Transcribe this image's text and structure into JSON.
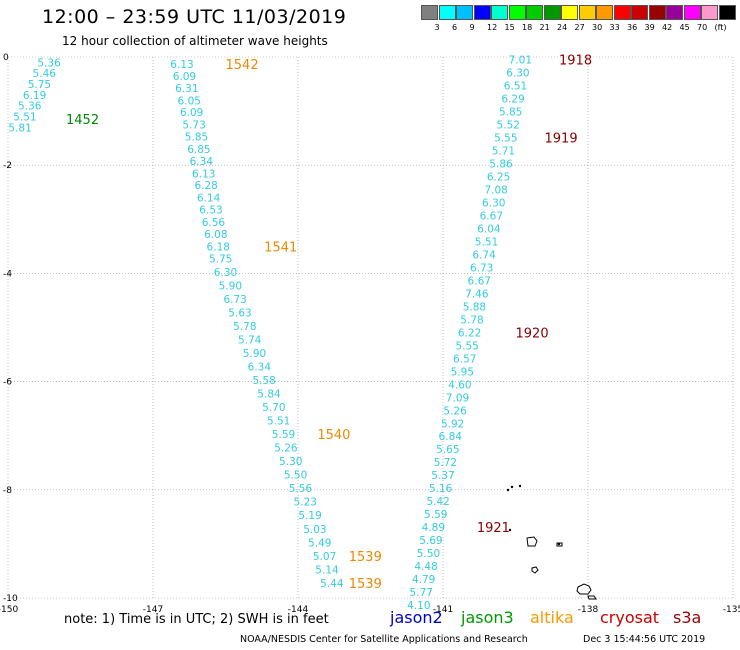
{
  "header": {
    "title": "12:00 – 23:59 UTC 11/03/2019",
    "subtitle": "12 hour collection of altimeter wave heights"
  },
  "colorbar": {
    "colors": [
      "#808080",
      "#00ffff",
      "#00bfff",
      "#0000ff",
      "#00ffcc",
      "#00ff00",
      "#00cc00",
      "#009900",
      "#ffff00",
      "#ffcc00",
      "#ff9900",
      "#ff0000",
      "#cc0000",
      "#990000",
      "#990099",
      "#ff00ff",
      "#ff99cc",
      "#000000"
    ],
    "labels": [
      "3",
      "6",
      "9",
      "12",
      "15",
      "18",
      "21",
      "24",
      "27",
      "30",
      "33",
      "36",
      "39",
      "42",
      "45",
      "70",
      "(ft)"
    ]
  },
  "footer": {
    "note": "note: 1) Time is in UTC; 2) SWH is in feet",
    "satellites": [
      {
        "name": "jason2",
        "color": "#0000cc"
      },
      {
        "name": "jason3",
        "color": "#009900"
      },
      {
        "name": "altika",
        "color": "#ff9900"
      },
      {
        "name": "cryosat",
        "color": "#cc0000"
      },
      {
        "name": "s3a",
        "color": "#990000"
      }
    ],
    "credit": "NOAA/NESDIS Center for Satellite Applications and Research",
    "timestamp": "Dec  3 15:44:56 UTC 2019"
  },
  "chart_data": {
    "type": "scatter",
    "title": "12:00 – 23:59 UTC 11/03/2019",
    "subtitle": "12 hour collection of altimeter wave heights",
    "xlim": [
      -150,
      -135
    ],
    "ylim": [
      -10,
      0
    ],
    "x_ticks": [
      "-150",
      "-147",
      "-144",
      "-141",
      "-138",
      "-135"
    ],
    "y_ticks": [
      "0",
      "-2",
      "-4",
      "-6",
      "-8",
      "-10"
    ],
    "value_color": "#33ccdd",
    "series": [
      {
        "name": "jason3",
        "color": "#008800",
        "label": "1452",
        "label_pos": [
          -148.8,
          -1.15
        ],
        "points": [
          {
            "x": -149.15,
            "y": -0.1,
            "v": "5.36"
          },
          {
            "x": -149.25,
            "y": -0.3,
            "v": "5.46"
          },
          {
            "x": -149.35,
            "y": -0.5,
            "v": "5.75"
          },
          {
            "x": -149.45,
            "y": -0.7,
            "v": "6.19"
          },
          {
            "x": -149.55,
            "y": -0.9,
            "v": "5.36"
          },
          {
            "x": -149.65,
            "y": -1.1,
            "v": "5.51"
          },
          {
            "x": -149.75,
            "y": -1.3,
            "v": "5.81"
          }
        ]
      },
      {
        "name": "altika",
        "color": "#ee8800",
        "label": "1542",
        "label_pos": [
          -145.5,
          -0.13
        ],
        "points": [
          {
            "x": -146.4,
            "y": -0.13,
            "v": "6.13"
          },
          {
            "x": -146.35,
            "y": -0.35,
            "v": "6.09"
          },
          {
            "x": -146.3,
            "y": -0.57,
            "v": "6.31"
          },
          {
            "x": -146.25,
            "y": -0.8,
            "v": "6.05"
          },
          {
            "x": -146.2,
            "y": -1.02,
            "v": "6.09"
          },
          {
            "x": -146.15,
            "y": -1.25,
            "v": "5.73"
          },
          {
            "x": -146.1,
            "y": -1.47,
            "v": "5.85"
          },
          {
            "x": -146.05,
            "y": -1.7,
            "v": "6.85"
          },
          {
            "x": -146.0,
            "y": -1.92,
            "v": "6.34"
          },
          {
            "x": -145.95,
            "y": -2.15,
            "v": "6.13"
          },
          {
            "x": -145.9,
            "y": -2.37,
            "v": "6.28"
          },
          {
            "x": -145.85,
            "y": -2.6,
            "v": "6.14"
          },
          {
            "x": -145.8,
            "y": -2.82,
            "v": "6.53"
          },
          {
            "x": -145.75,
            "y": -3.05,
            "v": "6.56"
          },
          {
            "x": -145.7,
            "y": -3.27,
            "v": "6.08"
          },
          {
            "x": -145.65,
            "y": -3.5,
            "v": "6.18"
          }
        ]
      },
      {
        "name": "altika",
        "color": "#ee8800",
        "label": "1541",
        "label_pos": [
          -144.7,
          -3.5
        ],
        "points": [
          {
            "x": -145.6,
            "y": -3.72,
            "v": "5.75"
          },
          {
            "x": -145.5,
            "y": -3.97,
            "v": "6.30"
          },
          {
            "x": -145.4,
            "y": -4.22,
            "v": "5.90"
          },
          {
            "x": -145.3,
            "y": -4.47,
            "v": "6.73"
          },
          {
            "x": -145.2,
            "y": -4.72,
            "v": "5.63"
          },
          {
            "x": -145.1,
            "y": -4.97,
            "v": "5.78"
          },
          {
            "x": -145.0,
            "y": -5.22,
            "v": "5.74"
          },
          {
            "x": -144.9,
            "y": -5.47,
            "v": "5.90"
          },
          {
            "x": -144.8,
            "y": -5.72,
            "v": "6.34"
          },
          {
            "x": -144.7,
            "y": -5.97,
            "v": "5.58"
          },
          {
            "x": -144.6,
            "y": -6.22,
            "v": "5.84"
          },
          {
            "x": -144.5,
            "y": -6.47,
            "v": "5.70"
          },
          {
            "x": -144.4,
            "y": -6.72,
            "v": "5.51"
          },
          {
            "x": -144.3,
            "y": -6.97,
            "v": "5.59"
          }
        ]
      },
      {
        "name": "altika",
        "color": "#ee8800",
        "label": "1540",
        "label_pos": [
          -143.6,
          -6.97
        ],
        "points": [
          {
            "x": -144.25,
            "y": -7.22,
            "v": "5.26"
          },
          {
            "x": -144.15,
            "y": -7.47,
            "v": "5.30"
          },
          {
            "x": -144.05,
            "y": -7.72,
            "v": "5.50"
          },
          {
            "x": -143.95,
            "y": -7.97,
            "v": "5.56"
          },
          {
            "x": -143.85,
            "y": -8.22,
            "v": "5.23"
          },
          {
            "x": -143.75,
            "y": -8.47,
            "v": "5.19"
          },
          {
            "x": -143.65,
            "y": -8.72,
            "v": "5.03"
          },
          {
            "x": -143.55,
            "y": -8.97,
            "v": "5.49"
          },
          {
            "x": -143.45,
            "y": -9.22,
            "v": "5.07"
          }
        ]
      },
      {
        "name": "altika",
        "color": "#ee8800",
        "label": "1539",
        "label_pos": [
          -142.95,
          -9.22
        ],
        "points": [
          {
            "x": -143.4,
            "y": -9.47,
            "v": "5.14"
          },
          {
            "x": -143.3,
            "y": -9.72,
            "v": "5.44"
          }
        ]
      },
      {
        "name": "altika",
        "color": "#ee8800",
        "label": "1539",
        "label_pos": [
          -142.95,
          -9.72
        ],
        "points": []
      },
      {
        "name": "s3a",
        "color": "#880000",
        "label": "1918",
        "label_pos": [
          -138.6,
          -0.05
        ],
        "points": [
          {
            "x": -139.4,
            "y": -0.05,
            "v": "7.01"
          },
          {
            "x": -139.45,
            "y": -0.29,
            "v": "6.30"
          },
          {
            "x": -139.5,
            "y": -0.53,
            "v": "6.51"
          },
          {
            "x": -139.55,
            "y": -0.77,
            "v": "6.29"
          },
          {
            "x": -139.6,
            "y": -1.01,
            "v": "5.85"
          },
          {
            "x": -139.65,
            "y": -1.25,
            "v": "5.52"
          },
          {
            "x": -139.7,
            "y": -1.49,
            "v": "5.55"
          }
        ]
      },
      {
        "name": "s3a",
        "color": "#880000",
        "label": "1919",
        "label_pos": [
          -138.9,
          -1.49
        ],
        "points": [
          {
            "x": -139.75,
            "y": -1.73,
            "v": "5.71"
          },
          {
            "x": -139.8,
            "y": -1.97,
            "v": "5.86"
          },
          {
            "x": -139.85,
            "y": -2.21,
            "v": "6.25"
          },
          {
            "x": -139.9,
            "y": -2.45,
            "v": "7.08"
          },
          {
            "x": -139.95,
            "y": -2.69,
            "v": "6.30"
          },
          {
            "x": -140.0,
            "y": -2.93,
            "v": "6.67"
          },
          {
            "x": -140.05,
            "y": -3.17,
            "v": "6.04"
          },
          {
            "x": -140.1,
            "y": -3.41,
            "v": "5.51"
          },
          {
            "x": -140.15,
            "y": -3.65,
            "v": "6.74"
          },
          {
            "x": -140.2,
            "y": -3.89,
            "v": "6.73"
          },
          {
            "x": -140.25,
            "y": -4.13,
            "v": "6.67"
          },
          {
            "x": -140.3,
            "y": -4.37,
            "v": "7.46"
          },
          {
            "x": -140.35,
            "y": -4.61,
            "v": "5.88"
          },
          {
            "x": -140.4,
            "y": -4.85,
            "v": "5.78"
          },
          {
            "x": -140.45,
            "y": -5.09,
            "v": "6.22"
          }
        ]
      },
      {
        "name": "s3a",
        "color": "#880000",
        "label": "1920",
        "label_pos": [
          -139.5,
          -5.09
        ],
        "points": [
          {
            "x": -140.5,
            "y": -5.33,
            "v": "5.55"
          },
          {
            "x": -140.55,
            "y": -5.57,
            "v": "6.57"
          },
          {
            "x": -140.6,
            "y": -5.81,
            "v": "5.95"
          },
          {
            "x": -140.65,
            "y": -6.05,
            "v": "4.60"
          },
          {
            "x": -140.7,
            "y": -6.29,
            "v": "7.09"
          },
          {
            "x": -140.75,
            "y": -6.53,
            "v": "5.26"
          },
          {
            "x": -140.8,
            "y": -6.77,
            "v": "5.92"
          },
          {
            "x": -140.85,
            "y": -7.01,
            "v": "6.84"
          },
          {
            "x": -140.9,
            "y": -7.25,
            "v": "5.65"
          },
          {
            "x": -140.95,
            "y": -7.49,
            "v": "5.72"
          },
          {
            "x": -141.0,
            "y": -7.73,
            "v": "5.37"
          },
          {
            "x": -141.05,
            "y": -7.97,
            "v": "5.16"
          },
          {
            "x": -141.1,
            "y": -8.21,
            "v": "5.42"
          },
          {
            "x": -141.15,
            "y": -8.45,
            "v": "5.59"
          },
          {
            "x": -141.2,
            "y": -8.69,
            "v": "4.89"
          }
        ]
      },
      {
        "name": "s3a",
        "color": "#880000",
        "label": "1921",
        "label_pos": [
          -140.3,
          -8.69
        ],
        "points": [
          {
            "x": -141.25,
            "y": -8.93,
            "v": "5.69"
          },
          {
            "x": -141.3,
            "y": -9.17,
            "v": "5.50"
          },
          {
            "x": -141.35,
            "y": -9.41,
            "v": "4.48"
          },
          {
            "x": -141.4,
            "y": -9.65,
            "v": "4.79"
          },
          {
            "x": -141.45,
            "y": -9.89,
            "v": "5.77"
          },
          {
            "x": -141.5,
            "y": -10.13,
            "v": "4.10"
          }
        ]
      }
    ]
  }
}
